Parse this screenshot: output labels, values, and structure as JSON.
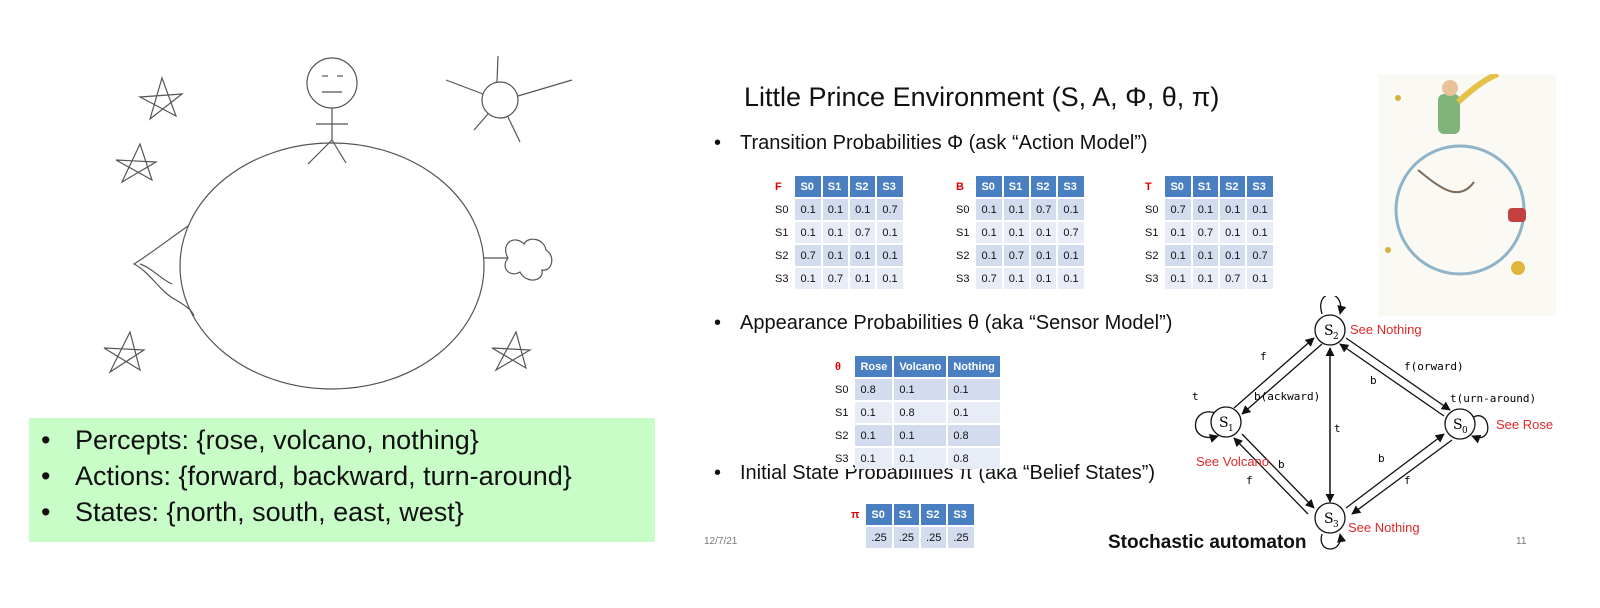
{
  "percepts_box": {
    "items": [
      "Percepts: {rose, volcano, nothing}",
      "Actions: {forward, backward, turn-around}",
      "States: {north, south, east, west}"
    ]
  },
  "slide": {
    "title": "Little Prince Environment (S, A, Φ, θ, π)",
    "bullet_transition": "Transition Probabilities Φ (ask “Action Model”)",
    "bullet_appearance": "Appearance Probabilities θ (aka “Sensor Model”)",
    "bullet_initial": "Initial State Probabilities π (aka “Belief States”)",
    "date": "12/7/21",
    "page": "11"
  },
  "tables": {
    "F": {
      "corner": "F",
      "cols": [
        "S0",
        "S1",
        "S2",
        "S3"
      ],
      "rows": [
        {
          "label": "S0",
          "cells": [
            "0.1",
            "0.1",
            "0.1",
            "0.7"
          ]
        },
        {
          "label": "S1",
          "cells": [
            "0.1",
            "0.1",
            "0.7",
            "0.1"
          ]
        },
        {
          "label": "S2",
          "cells": [
            "0.7",
            "0.1",
            "0.1",
            "0.1"
          ]
        },
        {
          "label": "S3",
          "cells": [
            "0.1",
            "0.7",
            "0.1",
            "0.1"
          ]
        }
      ]
    },
    "B": {
      "corner": "B",
      "cols": [
        "S0",
        "S1",
        "S2",
        "S3"
      ],
      "rows": [
        {
          "label": "S0",
          "cells": [
            "0.1",
            "0.1",
            "0.7",
            "0.1"
          ]
        },
        {
          "label": "S1",
          "cells": [
            "0.1",
            "0.1",
            "0.1",
            "0.7"
          ]
        },
        {
          "label": "S2",
          "cells": [
            "0.1",
            "0.7",
            "0.1",
            "0.1"
          ]
        },
        {
          "label": "S3",
          "cells": [
            "0.7",
            "0.1",
            "0.1",
            "0.1"
          ]
        }
      ]
    },
    "T": {
      "corner": "T",
      "cols": [
        "S0",
        "S1",
        "S2",
        "S3"
      ],
      "rows": [
        {
          "label": "S0",
          "cells": [
            "0.7",
            "0.1",
            "0.1",
            "0.1"
          ]
        },
        {
          "label": "S1",
          "cells": [
            "0.1",
            "0.7",
            "0.1",
            "0.1"
          ]
        },
        {
          "label": "S2",
          "cells": [
            "0.1",
            "0.1",
            "0.1",
            "0.7"
          ]
        },
        {
          "label": "S3",
          "cells": [
            "0.1",
            "0.1",
            "0.7",
            "0.1"
          ]
        }
      ]
    },
    "theta": {
      "corner": "θ",
      "cols": [
        "Rose",
        "Volcano",
        "Nothing"
      ],
      "rows": [
        {
          "label": "S0",
          "cells": [
            "0.8",
            "0.1",
            "0.1"
          ]
        },
        {
          "label": "S1",
          "cells": [
            "0.1",
            "0.8",
            "0.1"
          ]
        },
        {
          "label": "S2",
          "cells": [
            "0.1",
            "0.1",
            "0.8"
          ]
        },
        {
          "label": "S3",
          "cells": [
            "0.1",
            "0.1",
            "0.8"
          ]
        }
      ]
    },
    "pi": {
      "corner": "π",
      "cols": [
        "S0",
        "S1",
        "S2",
        "S3"
      ],
      "rows": [
        {
          "label": "",
          "cells": [
            ".25",
            ".25",
            ".25",
            ".25"
          ]
        }
      ]
    }
  },
  "automaton": {
    "caption": "Stochastic automaton",
    "nodes": [
      {
        "id": "s2",
        "main": "S",
        "sub": "2",
        "note": "See Nothing"
      },
      {
        "id": "s1",
        "main": "S",
        "sub": "1",
        "note": "See Volcano"
      },
      {
        "id": "s0",
        "main": "S",
        "sub": "0",
        "note": "See Rose"
      },
      {
        "id": "s3",
        "main": "S",
        "sub": "3",
        "note": "See Nothing"
      }
    ],
    "edge_labels": {
      "f_s1_s2": "f",
      "b_s2_s1": "b(ackward)",
      "f_s2_s0": "f(orward)",
      "b_s0_s2": "b",
      "t_s2_s3": "t",
      "t_s1": "t",
      "t_s0": "t(urn-around)",
      "b_s1_s3": "b",
      "f_s3_s1": "f",
      "b_s3_s0": "b",
      "f_s0_s3": "f"
    }
  },
  "colors": {
    "percepts_bg": "#c8fdc8",
    "table_header": "#4a7fc1",
    "table_cell": "#d3dcee",
    "corner_red": "#e00000",
    "note_red": "#e0282a"
  }
}
